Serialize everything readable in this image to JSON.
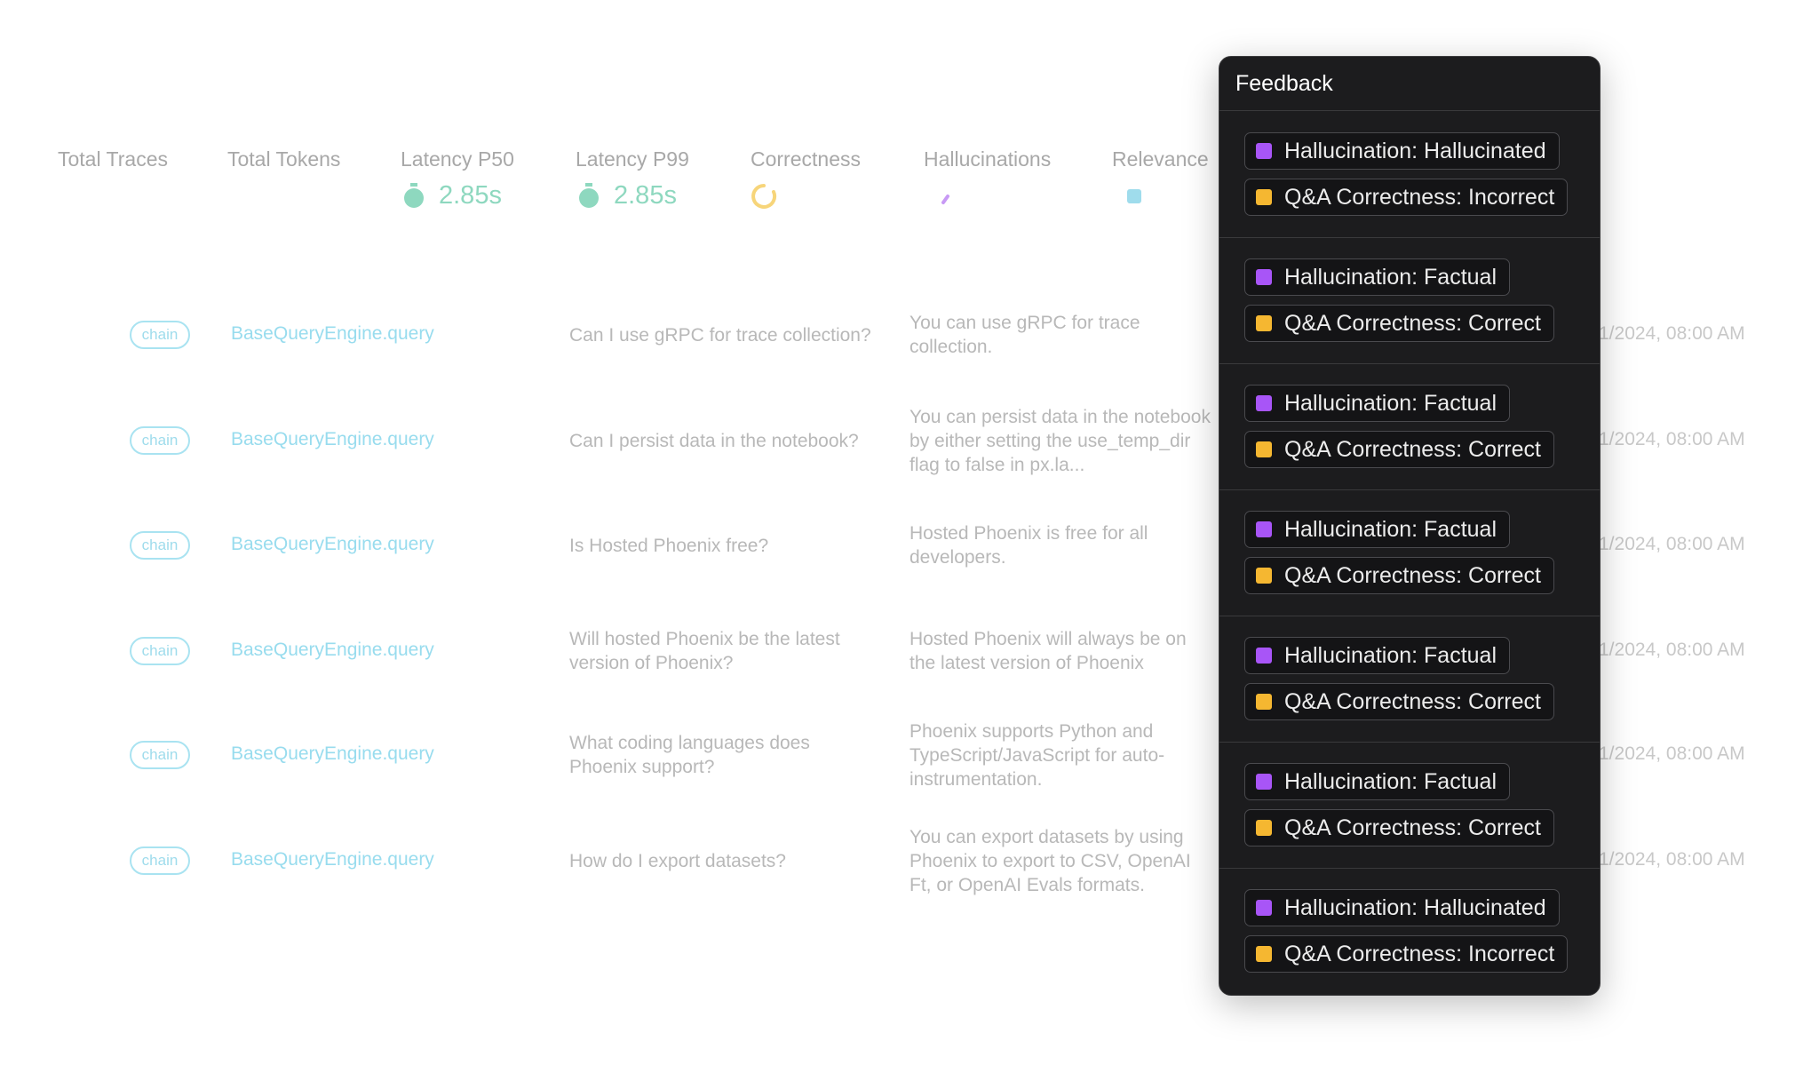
{
  "metrics": [
    {
      "label": "Total Traces"
    },
    {
      "label": "Total Tokens"
    },
    {
      "label": "Latency P50",
      "value": "2.85s"
    },
    {
      "label": "Latency P99",
      "value": "2.85s"
    },
    {
      "label": "Correctness"
    },
    {
      "label": "Hallucinations"
    },
    {
      "label": "Relevance"
    }
  ],
  "rows": [
    {
      "kind": "chain",
      "name": "BaseQueryEngine.query",
      "question": "Can I use gRPC for trace collection?",
      "answer": "You can use gRPC for trace collection.",
      "time": "1/2024, 08:00 AM"
    },
    {
      "kind": "chain",
      "name": "BaseQueryEngine.query",
      "question": "Can I persist data in the notebook?",
      "answer": "You can persist data in the notebook by either setting the use_temp_dir flag to false in px.la...",
      "time": "1/2024, 08:00 AM"
    },
    {
      "kind": "chain",
      "name": "BaseQueryEngine.query",
      "question": "Is Hosted Phoenix free?",
      "answer": "Hosted Phoenix is free for all developers.",
      "time": "1/2024, 08:00 AM"
    },
    {
      "kind": "chain",
      "name": "BaseQueryEngine.query",
      "question": "Will hosted Phoenix be the latest version of Phoenix?",
      "answer": "Hosted Phoenix will always be on the latest version of Phoenix",
      "time": "1/2024, 08:00 AM"
    },
    {
      "kind": "chain",
      "name": "BaseQueryEngine.query",
      "question": "What coding languages does Phoenix support?",
      "answer": "Phoenix supports Python and TypeScript/JavaScript for auto-instrumentation.",
      "time": "1/2024, 08:00 AM"
    },
    {
      "kind": "chain",
      "name": "BaseQueryEngine.query",
      "question": "How do I export datasets?",
      "answer": "You can export datasets by using Phoenix to export to CSV, OpenAI Ft, or OpenAI Evals formats.",
      "time": "1/2024, 08:00 AM"
    }
  ],
  "feedback": {
    "title": "Feedback",
    "items": [
      {
        "hallucination": "Hallucination: Hallucinated",
        "correctness": "Q&A Correctness: Incorrect"
      },
      {
        "hallucination": "Hallucination: Factual",
        "correctness": "Q&A Correctness: Correct"
      },
      {
        "hallucination": "Hallucination: Factual",
        "correctness": "Q&A Correctness: Correct"
      },
      {
        "hallucination": "Hallucination: Factual",
        "correctness": "Q&A Correctness: Correct"
      },
      {
        "hallucination": "Hallucination: Factual",
        "correctness": "Q&A Correctness: Correct"
      },
      {
        "hallucination": "Hallucination: Factual",
        "correctness": "Q&A Correctness: Correct"
      },
      {
        "hallucination": "Hallucination: Hallucinated",
        "correctness": "Q&A Correctness: Incorrect"
      }
    ]
  }
}
